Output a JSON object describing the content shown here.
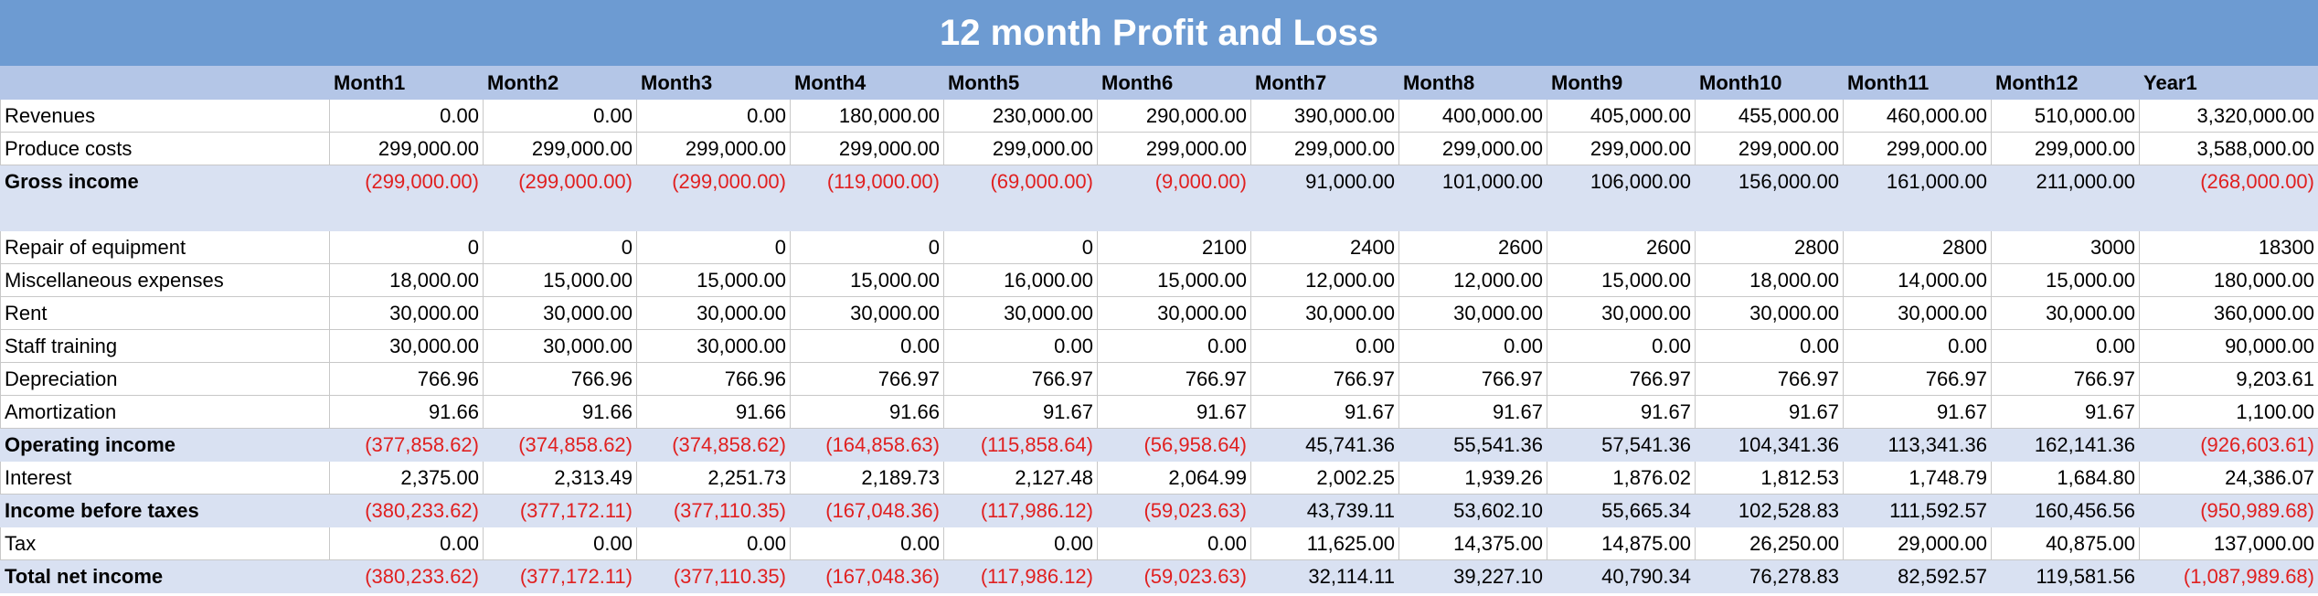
{
  "title": "12 month Profit and Loss",
  "headers": [
    "Month1",
    "Month2",
    "Month3",
    "Month4",
    "Month5",
    "Month6",
    "Month7",
    "Month8",
    "Month9",
    "Month10",
    "Month11",
    "Month12",
    "Year1"
  ],
  "rows": [
    {
      "label": "Revenues",
      "values": [
        "0.00",
        "0.00",
        "0.00",
        "180,000.00",
        "230,000.00",
        "290,000.00",
        "390,000.00",
        "400,000.00",
        "405,000.00",
        "455,000.00",
        "460,000.00",
        "510,000.00",
        "3,320,000.00"
      ]
    },
    {
      "label": "Produce costs",
      "values": [
        "299,000.00",
        "299,000.00",
        "299,000.00",
        "299,000.00",
        "299,000.00",
        "299,000.00",
        "299,000.00",
        "299,000.00",
        "299,000.00",
        "299,000.00",
        "299,000.00",
        "299,000.00",
        "3,588,000.00"
      ]
    },
    {
      "label": "Gross income",
      "bold": true,
      "values": [
        "(299,000.00)",
        "(299,000.00)",
        "(299,000.00)",
        "(119,000.00)",
        "(69,000.00)",
        "(9,000.00)",
        "91,000.00",
        "101,000.00",
        "106,000.00",
        "156,000.00",
        "161,000.00",
        "211,000.00",
        "(268,000.00)"
      ]
    },
    {
      "label": "Repair of equipment",
      "values": [
        "0",
        "0",
        "0",
        "0",
        "0",
        "2100",
        "2400",
        "2600",
        "2600",
        "2800",
        "2800",
        "3000",
        "18300"
      ]
    },
    {
      "label": "Miscellaneous expenses",
      "values": [
        "18,000.00",
        "15,000.00",
        "15,000.00",
        "15,000.00",
        "16,000.00",
        "15,000.00",
        "12,000.00",
        "12,000.00",
        "15,000.00",
        "18,000.00",
        "14,000.00",
        "15,000.00",
        "180,000.00"
      ]
    },
    {
      "label": "Rent",
      "values": [
        "30,000.00",
        "30,000.00",
        "30,000.00",
        "30,000.00",
        "30,000.00",
        "30,000.00",
        "30,000.00",
        "30,000.00",
        "30,000.00",
        "30,000.00",
        "30,000.00",
        "30,000.00",
        "360,000.00"
      ]
    },
    {
      "label": "Staff training",
      "values": [
        "30,000.00",
        "30,000.00",
        "30,000.00",
        "0.00",
        "0.00",
        "0.00",
        "0.00",
        "0.00",
        "0.00",
        "0.00",
        "0.00",
        "0.00",
        "90,000.00"
      ]
    },
    {
      "label": "Depreciation",
      "values": [
        "766.96",
        "766.96",
        "766.96",
        "766.97",
        "766.97",
        "766.97",
        "766.97",
        "766.97",
        "766.97",
        "766.97",
        "766.97",
        "766.97",
        "9,203.61"
      ]
    },
    {
      "label": "Amortization",
      "values": [
        "91.66",
        "91.66",
        "91.66",
        "91.66",
        "91.67",
        "91.67",
        "91.67",
        "91.67",
        "91.67",
        "91.67",
        "91.67",
        "91.67",
        "1,100.00"
      ]
    },
    {
      "label": "Operating income",
      "bold": true,
      "values": [
        "(377,858.62)",
        "(374,858.62)",
        "(374,858.62)",
        "(164,858.63)",
        "(115,858.64)",
        "(56,958.64)",
        "45,741.36",
        "55,541.36",
        "57,541.36",
        "104,341.36",
        "113,341.36",
        "162,141.36",
        "(926,603.61)"
      ]
    },
    {
      "label": "Interest",
      "values": [
        "2,375.00",
        "2,313.49",
        "2,251.73",
        "2,189.73",
        "2,127.48",
        "2,064.99",
        "2,002.25",
        "1,939.26",
        "1,876.02",
        "1,812.53",
        "1,748.79",
        "1,684.80",
        "24,386.07"
      ]
    },
    {
      "label": "Income before taxes",
      "bold": true,
      "values": [
        "(380,233.62)",
        "(377,172.11)",
        "(377,110.35)",
        "(167,048.36)",
        "(117,986.12)",
        "(59,023.63)",
        "43,739.11",
        "53,602.10",
        "55,665.34",
        "102,528.83",
        "111,592.57",
        "160,456.56",
        "(950,989.68)"
      ]
    },
    {
      "label": "Tax",
      "values": [
        "0.00",
        "0.00",
        "0.00",
        "0.00",
        "0.00",
        "0.00",
        "11,625.00",
        "14,375.00",
        "14,875.00",
        "26,250.00",
        "29,000.00",
        "40,875.00",
        "137,000.00"
      ]
    },
    {
      "label": "Total net income",
      "bold": true,
      "values": [
        "(380,233.62)",
        "(377,172.11)",
        "(377,110.35)",
        "(167,048.36)",
        "(117,986.12)",
        "(59,023.63)",
        "32,114.11",
        "39,227.10",
        "40,790.34",
        "76,278.83",
        "82,592.57",
        "119,581.56",
        "(1,087,989.68)"
      ]
    }
  ]
}
